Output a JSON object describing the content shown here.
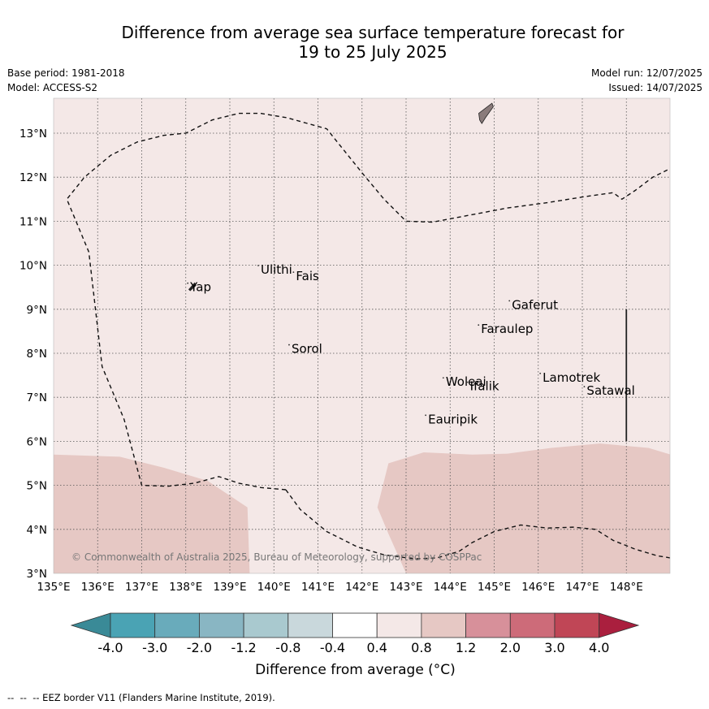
{
  "header": {
    "title_line1": "Difference from average sea surface temperature forecast for",
    "title_line2": "19 to 25 July 2025",
    "base_period": "Base period: 1981-2018",
    "model": "Model: ACCESS-S2",
    "model_run": "Model run: 12/07/2025",
    "issued": "Issued: 14/07/2025"
  },
  "map": {
    "lon_range": [
      135,
      149
    ],
    "lat_range": [
      3,
      13.8
    ],
    "lon_ticks": [
      "135°E",
      "136°E",
      "137°E",
      "138°E",
      "139°E",
      "140°E",
      "141°E",
      "142°E",
      "143°E",
      "144°E",
      "145°E",
      "146°E",
      "147°E",
      "148°E"
    ],
    "lat_ticks": [
      "3°N",
      "4°N",
      "5°N",
      "6°N",
      "7°N",
      "8°N",
      "9°N",
      "10°N",
      "11°N",
      "12°N",
      "13°N"
    ],
    "copyright": "© Commonwealth of Australia 2025, Bureau of Meteorology, supported by COSPPac",
    "background_color": "#f4e8e7",
    "warm_region_color": "#e6c8c4",
    "places": [
      {
        "name": "Ulithi",
        "lon": 139.7,
        "lat": 9.9
      },
      {
        "name": "Fais",
        "lon": 140.5,
        "lat": 9.75
      },
      {
        "name": "Yap",
        "lon": 138.1,
        "lat": 9.5
      },
      {
        "name": "Gaferut",
        "lon": 145.4,
        "lat": 9.1
      },
      {
        "name": "Faraulep",
        "lon": 144.7,
        "lat": 8.55
      },
      {
        "name": "Sorol",
        "lon": 140.4,
        "lat": 8.1
      },
      {
        "name": "Woleai",
        "lon": 143.9,
        "lat": 7.35
      },
      {
        "name": "Ifalik",
        "lon": 144.45,
        "lat": 7.25
      },
      {
        "name": "Lamotrek",
        "lon": 146.1,
        "lat": 7.45
      },
      {
        "name": "Satawal",
        "lon": 147.1,
        "lat": 7.15
      },
      {
        "name": "Eauripik",
        "lon": 143.5,
        "lat": 6.5
      }
    ]
  },
  "colorbar": {
    "ticks": [
      "-4.0",
      "-3.0",
      "-2.0",
      "-1.2",
      "-0.8",
      "-0.4",
      "0.4",
      "0.8",
      "1.2",
      "2.0",
      "3.0",
      "4.0"
    ],
    "colors": [
      "#3a8a97",
      "#4aa3b4",
      "#69abbb",
      "#89b6c3",
      "#a9c9cf",
      "#c9d8dc",
      "#ffffff",
      "#f4e8e7",
      "#e6c8c4",
      "#d7909a",
      "#cd6b79",
      "#c04656",
      "#aa1f3e"
    ],
    "label": "Difference from average (°C)"
  },
  "footer": "--  --  -- EEZ border V11 (Flanders Marine Institute, 2019)."
}
